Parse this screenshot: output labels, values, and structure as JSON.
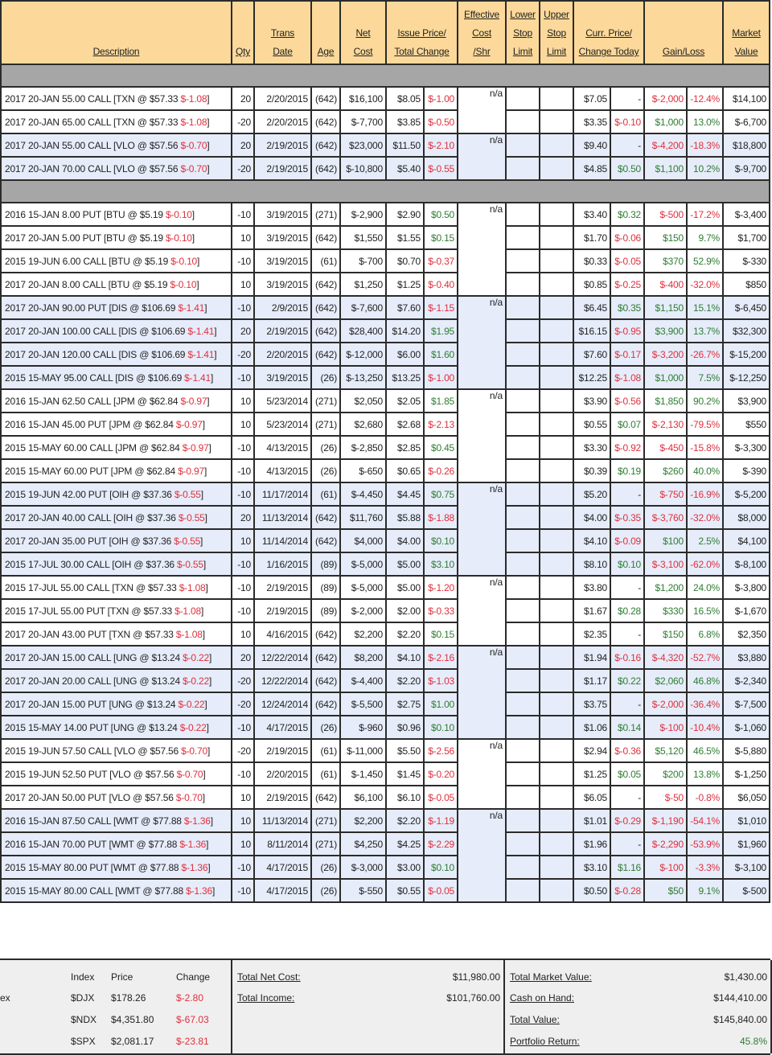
{
  "header": {
    "description": "Description",
    "qty": "Qty",
    "trans_date": [
      "Trans",
      "Date"
    ],
    "age": "Age",
    "net_cost": [
      "Net",
      "Cost"
    ],
    "issue_price": [
      "Issue Price/",
      "Total Change"
    ],
    "effective_cost": [
      "Effective",
      "Cost",
      "/Shr"
    ],
    "lower_stop": [
      "Lower",
      "Stop",
      "Limit"
    ],
    "upper_stop": [
      "Upper",
      "Stop",
      "Limit"
    ],
    "curr_price": [
      "Curr. Price/",
      "Change Today"
    ],
    "gain_loss": "Gain/Loss",
    "market_value": [
      "Market",
      "Value"
    ]
  },
  "eff_label": "n/a",
  "sections": [
    {
      "groups": [
        {
          "shade": "white",
          "rows": [
            [
              "2017 20-JAN 55.00 CALL [TXN @ $57.33 ",
              "$-1.08",
              "20",
              "2/20/2015",
              "(642)",
              "$16,100",
              "$8.05",
              "$-1.00",
              "$7.05",
              "-",
              "$-2,000",
              "-12.4%",
              "$14,100"
            ],
            [
              "2017 20-JAN 65.00 CALL [TXN @ $57.33 ",
              "$-1.08",
              "-20",
              "2/20/2015",
              "(642)",
              "$-7,700",
              "$3.85",
              "$-0.50",
              "$3.35",
              "$-0.10",
              "$1,000",
              "13.0%",
              "$-6,700"
            ]
          ]
        },
        {
          "shade": "blue",
          "rows": [
            [
              "2017 20-JAN 55.00 CALL [VLO @ $57.56 ",
              "$-0.70",
              "20",
              "2/19/2015",
              "(642)",
              "$23,000",
              "$11.50",
              "$-2.10",
              "$9.40",
              "-",
              "$-4,200",
              "-18.3%",
              "$18,800"
            ],
            [
              "2017 20-JAN 70.00 CALL [VLO @ $57.56 ",
              "$-0.70",
              "-20",
              "2/19/2015",
              "(642)",
              "$-10,800",
              "$5.40",
              "$-0.55",
              "$4.85",
              "$0.50",
              "$1,100",
              "10.2%",
              "$-9,700"
            ]
          ]
        }
      ]
    },
    {
      "groups": [
        {
          "shade": "white",
          "rows": [
            [
              "2016 15-JAN 8.00 PUT [BTU @ $5.19 ",
              "$-0.10",
              "-10",
              "3/19/2015",
              "(271)",
              "$-2,900",
              "$2.90",
              "$0.50",
              "$3.40",
              "$0.32",
              "$-500",
              "-17.2%",
              "$-3,400"
            ],
            [
              "2017 20-JAN 5.00 PUT [BTU @ $5.19 ",
              "$-0.10",
              "10",
              "3/19/2015",
              "(642)",
              "$1,550",
              "$1.55",
              "$0.15",
              "$1.70",
              "$-0.06",
              "$150",
              "9.7%",
              "$1,700"
            ],
            [
              "2015 19-JUN 6.00 CALL [BTU @ $5.19 ",
              "$-0.10",
              "-10",
              "3/19/2015",
              "(61)",
              "$-700",
              "$0.70",
              "$-0.37",
              "$0.33",
              "$-0.05",
              "$370",
              "52.9%",
              "$-330"
            ],
            [
              "2017 20-JAN 8.00 CALL [BTU @ $5.19 ",
              "$-0.10",
              "10",
              "3/19/2015",
              "(642)",
              "$1,250",
              "$1.25",
              "$-0.40",
              "$0.85",
              "$-0.25",
              "$-400",
              "-32.0%",
              "$850"
            ]
          ]
        },
        {
          "shade": "blue",
          "rows": [
            [
              "2017 20-JAN 90.00 PUT [DIS @ $106.69 ",
              "$-1.41",
              "-10",
              "2/9/2015",
              "(642)",
              "$-7,600",
              "$7.60",
              "$-1.15",
              "$6.45",
              "$0.35",
              "$1,150",
              "15.1%",
              "$-6,450"
            ],
            [
              "2017 20-JAN 100.00 CALL [DIS @ $106.69 ",
              "$-1.41",
              "20",
              "2/19/2015",
              "(642)",
              "$28,400",
              "$14.20",
              "$1.95",
              "$16.15",
              "$-0.95",
              "$3,900",
              "13.7%",
              "$32,300"
            ],
            [
              "2017 20-JAN 120.00 CALL [DIS @ $106.69 ",
              "$-1.41",
              "-20",
              "2/20/2015",
              "(642)",
              "$-12,000",
              "$6.00",
              "$1.60",
              "$7.60",
              "$-0.17",
              "$-3,200",
              "-26.7%",
              "$-15,200"
            ],
            [
              "2015 15-MAY 95.00 CALL [DIS @ $106.69 ",
              "$-1.41",
              "-10",
              "3/19/2015",
              "(26)",
              "$-13,250",
              "$13.25",
              "$-1.00",
              "$12.25",
              "$-1.08",
              "$1,000",
              "7.5%",
              "$-12,250"
            ]
          ]
        },
        {
          "shade": "white",
          "rows": [
            [
              "2016 15-JAN 62.50 CALL [JPM @ $62.84 ",
              "$-0.97",
              "10",
              "5/23/2014",
              "(271)",
              "$2,050",
              "$2.05",
              "$1.85",
              "$3.90",
              "$-0.56",
              "$1,850",
              "90.2%",
              "$3,900"
            ],
            [
              "2016 15-JAN 45.00 PUT [JPM @ $62.84 ",
              "$-0.97",
              "10",
              "5/23/2014",
              "(271)",
              "$2,680",
              "$2.68",
              "$-2.13",
              "$0.55",
              "$0.07",
              "$-2,130",
              "-79.5%",
              "$550"
            ],
            [
              "2015 15-MAY 60.00 CALL [JPM @ $62.84 ",
              "$-0.97",
              "-10",
              "4/13/2015",
              "(26)",
              "$-2,850",
              "$2.85",
              "$0.45",
              "$3.30",
              "$-0.92",
              "$-450",
              "-15.8%",
              "$-3,300"
            ],
            [
              "2015 15-MAY 60.00 PUT [JPM @ $62.84 ",
              "$-0.97",
              "-10",
              "4/13/2015",
              "(26)",
              "$-650",
              "$0.65",
              "$-0.26",
              "$0.39",
              "$0.19",
              "$260",
              "40.0%",
              "$-390"
            ]
          ]
        },
        {
          "shade": "blue",
          "rows": [
            [
              "2015 19-JUN 42.00 PUT [OIH @ $37.36 ",
              "$-0.55",
              "-10",
              "11/17/2014",
              "(61)",
              "$-4,450",
              "$4.45",
              "$0.75",
              "$5.20",
              "-",
              "$-750",
              "-16.9%",
              "$-5,200"
            ],
            [
              "2017 20-JAN 40.00 CALL [OIH @ $37.36 ",
              "$-0.55",
              "20",
              "11/13/2014",
              "(642)",
              "$11,760",
              "$5.88",
              "$-1.88",
              "$4.00",
              "$-0.35",
              "$-3,760",
              "-32.0%",
              "$8,000"
            ],
            [
              "2017 20-JAN 35.00 PUT [OIH @ $37.36 ",
              "$-0.55",
              "10",
              "11/14/2014",
              "(642)",
              "$4,000",
              "$4.00",
              "$0.10",
              "$4.10",
              "$-0.09",
              "$100",
              "2.5%",
              "$4,100"
            ],
            [
              "2015 17-JUL 30.00 CALL [OIH @ $37.36 ",
              "$-0.55",
              "-10",
              "1/16/2015",
              "(89)",
              "$-5,000",
              "$5.00",
              "$3.10",
              "$8.10",
              "$0.10",
              "$-3,100",
              "-62.0%",
              "$-8,100"
            ]
          ]
        },
        {
          "shade": "white",
          "rows": [
            [
              "2015 17-JUL 55.00 CALL [TXN @ $57.33 ",
              "$-1.08",
              "-10",
              "2/19/2015",
              "(89)",
              "$-5,000",
              "$5.00",
              "$-1.20",
              "$3.80",
              "-",
              "$1,200",
              "24.0%",
              "$-3,800"
            ],
            [
              "2015 17-JUL 55.00 PUT [TXN @ $57.33 ",
              "$-1.08",
              "-10",
              "2/19/2015",
              "(89)",
              "$-2,000",
              "$2.00",
              "$-0.33",
              "$1.67",
              "$0.28",
              "$330",
              "16.5%",
              "$-1,670"
            ],
            [
              "2017 20-JAN 43.00 PUT [TXN @ $57.33 ",
              "$-1.08",
              "10",
              "4/16/2015",
              "(642)",
              "$2,200",
              "$2.20",
              "$0.15",
              "$2.35",
              "-",
              "$150",
              "6.8%",
              "$2,350"
            ]
          ]
        },
        {
          "shade": "blue",
          "rows": [
            [
              "2017 20-JAN 15.00 CALL [UNG @ $13.24 ",
              "$-0.22",
              "20",
              "12/22/2014",
              "(642)",
              "$8,200",
              "$4.10",
              "$-2.16",
              "$1.94",
              "$-0.16",
              "$-4,320",
              "-52.7%",
              "$3,880"
            ],
            [
              "2017 20-JAN 20.00 CALL [UNG @ $13.24 ",
              "$-0.22",
              "-20",
              "12/22/2014",
              "(642)",
              "$-4,400",
              "$2.20",
              "$-1.03",
              "$1.17",
              "$0.22",
              "$2,060",
              "46.8%",
              "$-2,340"
            ],
            [
              "2017 20-JAN 15.00 PUT [UNG @ $13.24 ",
              "$-0.22",
              "-20",
              "12/24/2014",
              "(642)",
              "$-5,500",
              "$2.75",
              "$1.00",
              "$3.75",
              "-",
              "$-2,000",
              "-36.4%",
              "$-7,500"
            ],
            [
              "2015 15-MAY 14.00 PUT [UNG @ $13.24 ",
              "$-0.22",
              "-10",
              "4/17/2015",
              "(26)",
              "$-960",
              "$0.96",
              "$0.10",
              "$1.06",
              "$0.14",
              "$-100",
              "-10.4%",
              "$-1,060"
            ]
          ]
        },
        {
          "shade": "white",
          "rows": [
            [
              "2015 19-JUN 57.50 CALL [VLO @ $57.56 ",
              "$-0.70",
              "-20",
              "2/19/2015",
              "(61)",
              "$-11,000",
              "$5.50",
              "$-2.56",
              "$2.94",
              "$-0.36",
              "$5,120",
              "46.5%",
              "$-5,880"
            ],
            [
              "2015 19-JUN 52.50 PUT [VLO @ $57.56 ",
              "$-0.70",
              "-10",
              "2/20/2015",
              "(61)",
              "$-1,450",
              "$1.45",
              "$-0.20",
              "$1.25",
              "$0.05",
              "$200",
              "13.8%",
              "$-1,250"
            ],
            [
              "2017 20-JAN 50.00 PUT [VLO @ $57.56 ",
              "$-0.70",
              "10",
              "2/19/2015",
              "(642)",
              "$6,100",
              "$6.10",
              "$-0.05",
              "$6.05",
              "-",
              "$-50",
              "-0.8%",
              "$6,050"
            ]
          ]
        },
        {
          "shade": "blue",
          "rows": [
            [
              "2016 15-JAN 87.50 CALL [WMT @ $77.88 ",
              "$-1.36",
              "10",
              "11/13/2014",
              "(271)",
              "$2,200",
              "$2.20",
              "$-1.19",
              "$1.01",
              "$-0.29",
              "$-1,190",
              "-54.1%",
              "$1,010"
            ],
            [
              "2016 15-JAN 70.00 PUT [WMT @ $77.88 ",
              "$-1.36",
              "10",
              "8/11/2014",
              "(271)",
              "$4,250",
              "$4.25",
              "$-2.29",
              "$1.96",
              "-",
              "$-2,290",
              "-53.9%",
              "$1,960"
            ],
            [
              "2015 15-MAY 80.00 PUT [WMT @ $77.88 ",
              "$-1.36",
              "-10",
              "4/17/2015",
              "(26)",
              "$-3,000",
              "$3.00",
              "$0.10",
              "$3.10",
              "$1.16",
              "$-100",
              "-3.3%",
              "$-3,100"
            ],
            [
              "2015 15-MAY 80.00 CALL [WMT @ $77.88 ",
              "$-1.36",
              "-10",
              "4/17/2015",
              "(26)",
              "$-550",
              "$0.55",
              "$-0.05",
              "$0.50",
              "$-0.28",
              "$50",
              "9.1%",
              "$-500"
            ]
          ]
        }
      ]
    }
  ],
  "footer": {
    "index_label_fragment": "ex",
    "index_headers": [
      "Index",
      "Price",
      "Change"
    ],
    "indexes": [
      {
        "symbol": "$DJX",
        "price": "$178.26",
        "change": "$-2.80"
      },
      {
        "symbol": "$NDX",
        "price": "$4,351.80",
        "change": "$-67.03"
      },
      {
        "symbol": "$SPX",
        "price": "$2,081.17",
        "change": "$-23.81"
      }
    ],
    "total_net_cost_label": "Total Net Cost:",
    "total_net_cost": "$11,980.00",
    "total_income_label": "Total Income:",
    "total_income": "$101,760.00",
    "total_market_value_label": "Total Market Value:",
    "total_market_value": "$1,430.00",
    "cash_on_hand_label": "Cash on Hand:",
    "cash_on_hand": "$144,410.00",
    "total_value_label": "Total Value:",
    "total_value": "$145,840.00",
    "portfolio_return_label": "Portfolio Return:",
    "portfolio_return": "45.8%"
  },
  "colors": {
    "header_bg": "#fcd99a",
    "separator": "#a6a6a6",
    "row_blue": "#e6ecfa",
    "negative": "#e0303c",
    "positive": "#2e7d32"
  }
}
